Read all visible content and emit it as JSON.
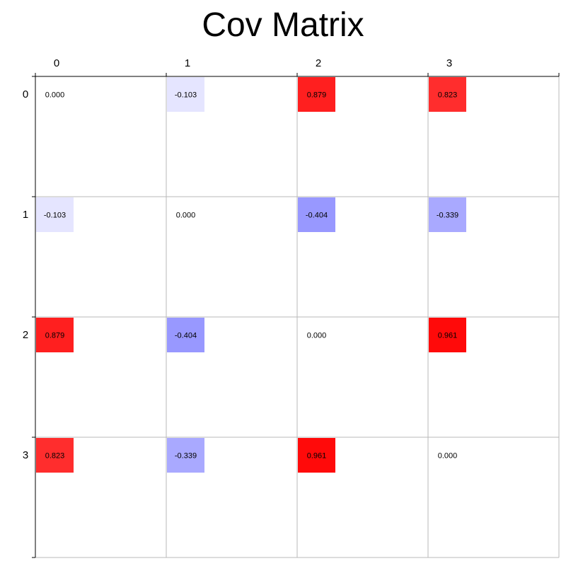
{
  "chart_data": {
    "type": "heatmap",
    "title": "Cov Matrix",
    "x_labels": [
      "0",
      "1",
      "2",
      "3"
    ],
    "y_labels": [
      "0",
      "1",
      "2",
      "3"
    ],
    "values": [
      [
        0.0,
        -0.103,
        0.879,
        0.823
      ],
      [
        -0.103,
        0.0,
        -0.404,
        -0.339
      ],
      [
        0.879,
        -0.404,
        0.0,
        0.961
      ],
      [
        0.823,
        -0.339,
        0.961,
        0.0
      ]
    ],
    "value_labels": [
      [
        "0.000",
        "-0.103",
        "0.879",
        "0.823"
      ],
      [
        "-0.103",
        "0.000",
        "-0.404",
        "-0.339"
      ],
      [
        "0.879",
        "-0.404",
        "0.000",
        "0.961"
      ],
      [
        "0.823",
        "-0.339",
        "0.961",
        "0.000"
      ]
    ],
    "color_scale": {
      "negative": "#0000ff",
      "zero": "#ffffff",
      "positive": "#ff0000",
      "vmin": -1,
      "vmax": 1
    },
    "x_tick_position": "top",
    "grid": true
  }
}
